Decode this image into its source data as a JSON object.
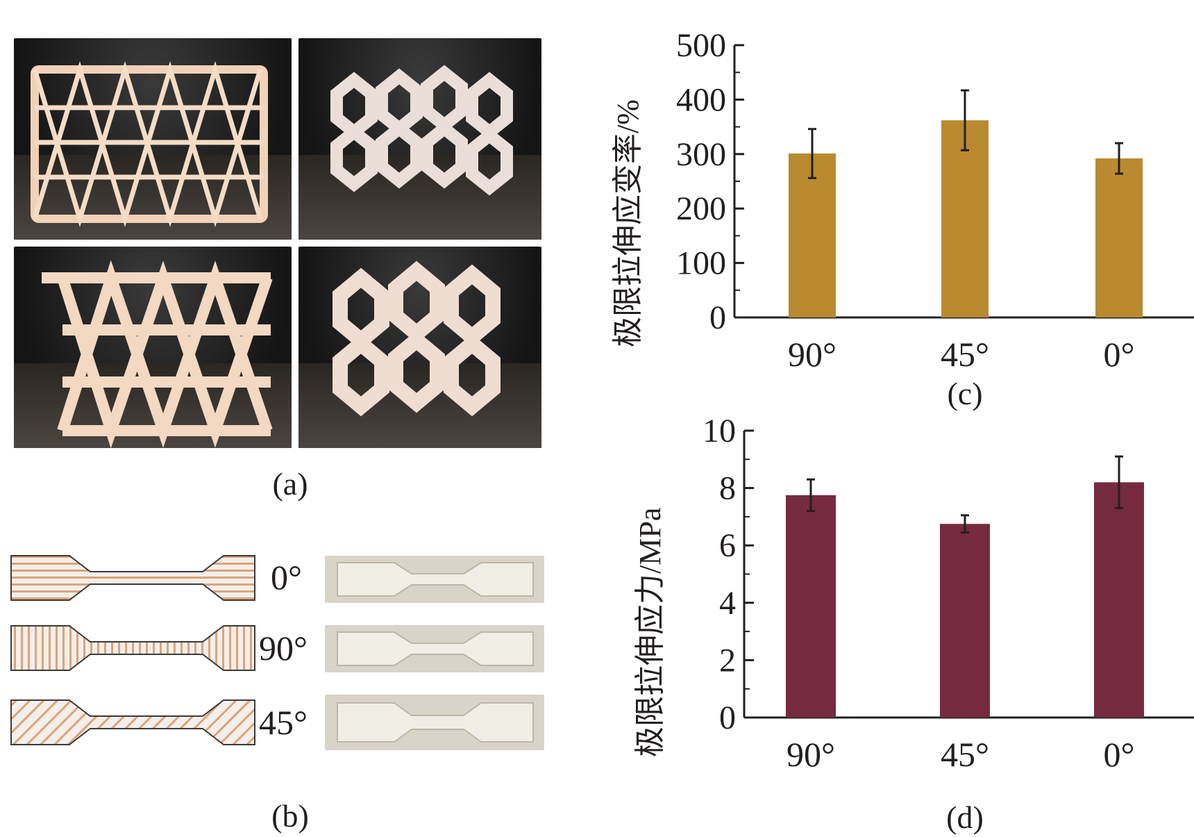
{
  "panels": {
    "a_caption": "(a)",
    "b_caption": "(b)",
    "c_caption": "(c)",
    "d_caption": "(d)",
    "specimen_angles": [
      "0°",
      "90°",
      "45°"
    ]
  },
  "colors": {
    "strain_bar": "#b98a2f",
    "stress_bar": "#762a3f",
    "stripe": "#e0a273",
    "specimen_fill": "#f2efec"
  },
  "chart_data": [
    {
      "type": "bar",
      "panel": "c",
      "categories": [
        "90°",
        "45°",
        "0°"
      ],
      "values": [
        301,
        362,
        292
      ],
      "errors": [
        45,
        55,
        28
      ],
      "ylabel": "极限拉伸应变率/%",
      "ylim": [
        0,
        500
      ],
      "yticks": [
        "0",
        "100",
        "200",
        "300",
        "400",
        "500"
      ],
      "color": "#b98a2f"
    },
    {
      "type": "bar",
      "panel": "d",
      "categories": [
        "90°",
        "45°",
        "0°"
      ],
      "values": [
        7.75,
        6.75,
        8.2
      ],
      "errors": [
        0.55,
        0.3,
        0.9
      ],
      "ylabel": "极限拉伸应力/MPa",
      "ylim": [
        0,
        10
      ],
      "yticks": [
        "0",
        "2",
        "4",
        "6",
        "8",
        "10"
      ],
      "color": "#762a3f"
    }
  ]
}
